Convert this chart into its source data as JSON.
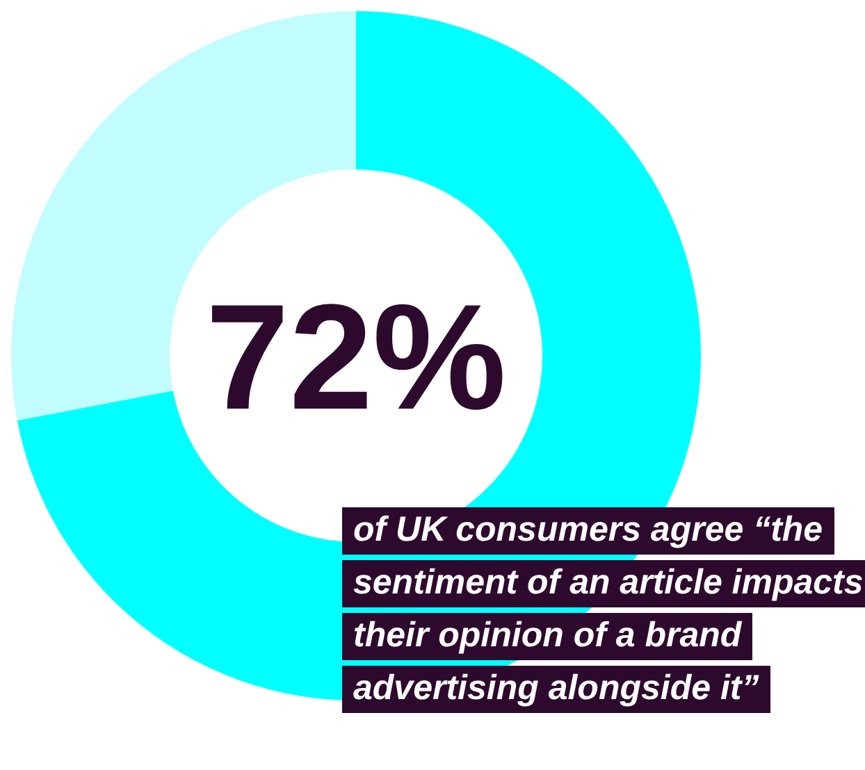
{
  "chart_data": {
    "type": "donut",
    "categories": [
      null,
      null
    ],
    "values": [
      72,
      28
    ],
    "colors": [
      "#00ffff",
      "#c2fdfd"
    ],
    "value_labels": [
      "72%",
      null
    ],
    "annotations": [
      "of UK consumers agree “the sentiment of an article impacts their opinion of a brand advertising alongside it”"
    ]
  }
}
